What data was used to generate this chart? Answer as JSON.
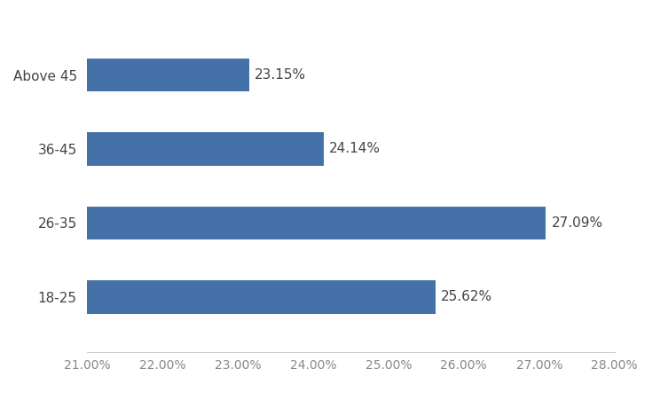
{
  "categories": [
    "18-25",
    "26-35",
    "36-45",
    "Above 45"
  ],
  "values": [
    25.62,
    27.09,
    24.14,
    23.15
  ],
  "labels": [
    "25.62%",
    "27.09%",
    "24.14%",
    "23.15%"
  ],
  "bar_color": "#4472a8",
  "xlim": [
    21.0,
    28.0
  ],
  "xticks": [
    21.0,
    22.0,
    23.0,
    24.0,
    25.0,
    26.0,
    27.0,
    28.0
  ],
  "background_color": "#ffffff",
  "label_fontsize": 11,
  "tick_fontsize": 10,
  "bar_height": 0.45,
  "figsize": [
    7.53,
    4.51
  ],
  "dpi": 100
}
